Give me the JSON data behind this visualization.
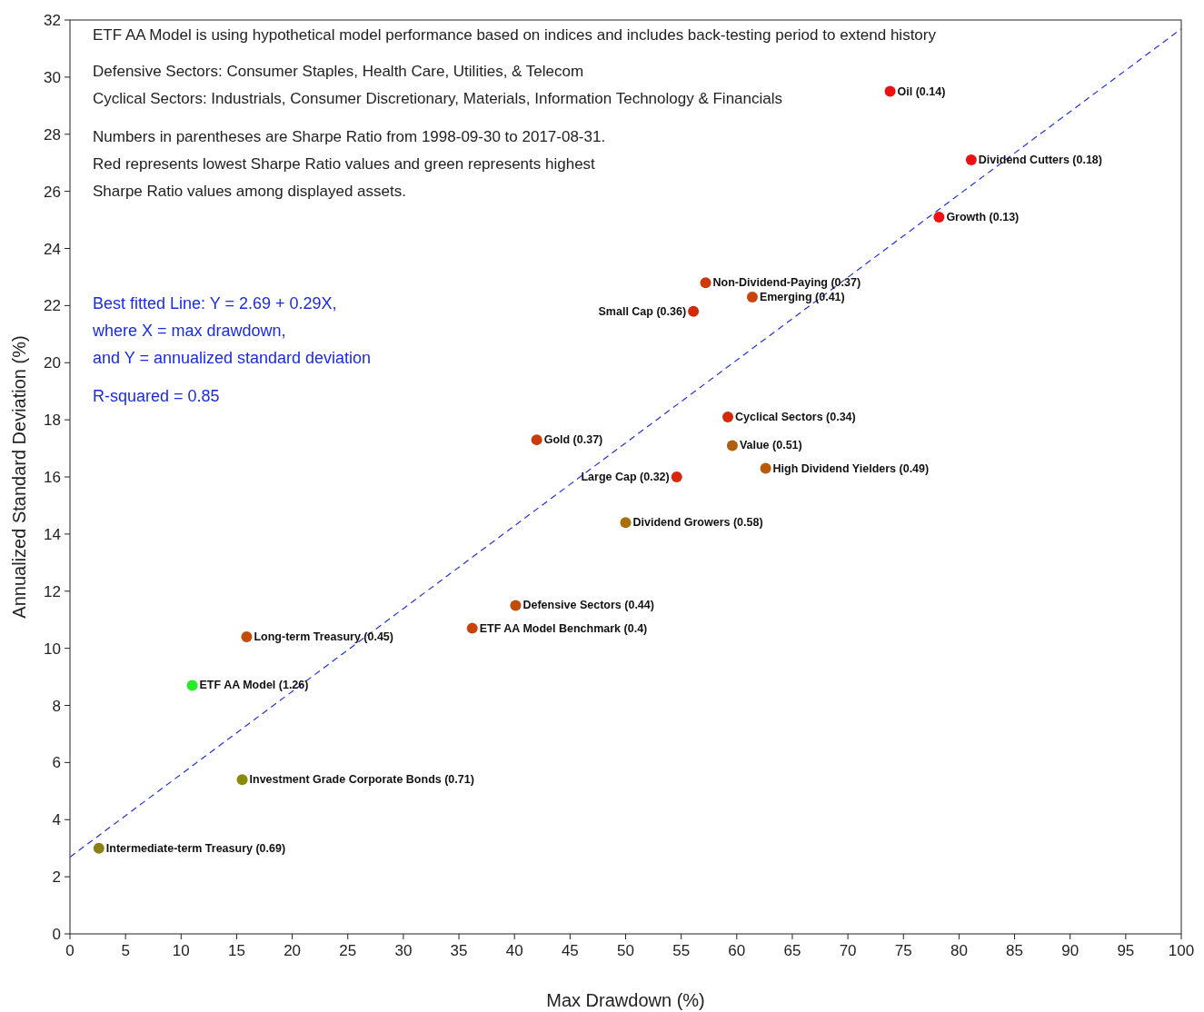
{
  "chart_data": {
    "type": "scatter",
    "xlabel": "Max Drawdown (%)",
    "ylabel": "Annualized Standard Deviation (%)",
    "xlim": [
      0,
      100
    ],
    "xticks": [
      0,
      5,
      10,
      15,
      20,
      25,
      30,
      35,
      40,
      45,
      50,
      55,
      60,
      65,
      70,
      75,
      80,
      85,
      90,
      95,
      100
    ],
    "ylim": [
      0,
      32
    ],
    "yticks": [
      0,
      2,
      4,
      6,
      8,
      10,
      12,
      14,
      16,
      18,
      20,
      22,
      24,
      26,
      28,
      30,
      32
    ],
    "marker": "circle",
    "grid": false,
    "annotations": [
      "ETF AA Model is using hypothetical model performance based on indices and includes back-testing period to extend history",
      "Defensive Sectors: Consumer Staples, Health Care, Utilities, & Telecom",
      "Cyclical Sectors: Industrials, Consumer Discretionary, Materials, Information Technology & Financials",
      "Numbers in parentheses are Sharpe Ratio from 1998-09-30 to 2017-08-31.",
      "Red represents lowest Sharpe Ratio values and green represents highest",
      "Sharpe Ratio values among displayed assets.",
      "Best fitted Line: Y = 2.69 + 0.29X,",
      "where X = max drawdown,",
      "and Y = annualized standard deviation",
      "R-squared = 0.85"
    ],
    "series": [
      {
        "name": "Oil (0.14)",
        "color": "#ee1111",
        "x": [
          73.8
        ],
        "values": [
          29.5
        ]
      },
      {
        "name": "Dividend Cutters (0.18)",
        "color": "#ee1111",
        "x": [
          81.1
        ],
        "values": [
          27.1
        ]
      },
      {
        "name": "Growth (0.13)",
        "color": "#ee1111",
        "x": [
          78.2
        ],
        "values": [
          25.1
        ]
      },
      {
        "name": "Non-Dividend-Paying (0.37)",
        "color": "#cc3a0a",
        "x": [
          57.2
        ],
        "values": [
          22.8
        ]
      },
      {
        "name": "Small Cap (0.36)",
        "color": "#d42a0a",
        "x": [
          56.1
        ],
        "values": [
          21.8
        ]
      },
      {
        "name": "Emerging (0.41)",
        "color": "#c8440a",
        "x": [
          61.4
        ],
        "values": [
          22.3
        ]
      },
      {
        "name": "Cyclical Sectors (0.34)",
        "color": "#d42a0a",
        "x": [
          59.2
        ],
        "values": [
          18.1
        ]
      },
      {
        "name": "Value (0.51)",
        "color": "#b0600a",
        "x": [
          59.6
        ],
        "values": [
          17.1
        ]
      },
      {
        "name": "Large Cap (0.32)",
        "color": "#d42a0a",
        "x": [
          54.6
        ],
        "values": [
          16.0
        ]
      },
      {
        "name": "High Dividend Yielders (0.49)",
        "color": "#b85a0a",
        "x": [
          62.6
        ],
        "values": [
          16.3
        ]
      },
      {
        "name": "Gold (0.37)",
        "color": "#cc3a0a",
        "x": [
          42.0
        ],
        "values": [
          17.3
        ]
      },
      {
        "name": "Dividend Growers (0.58)",
        "color": "#a8700a",
        "x": [
          50.0
        ],
        "values": [
          14.4
        ]
      },
      {
        "name": "Defensive Sectors (0.44)",
        "color": "#c04e0a",
        "x": [
          40.1
        ],
        "values": [
          11.5
        ]
      },
      {
        "name": "ETF AA Model Benchmark (0.4)",
        "color": "#c8440a",
        "x": [
          36.2
        ],
        "values": [
          10.7
        ]
      },
      {
        "name": "Long-term Treasury (0.45)",
        "color": "#c04e0a",
        "x": [
          15.9
        ],
        "values": [
          10.4
        ]
      },
      {
        "name": "ETF AA Model (1.26)",
        "color": "#22ee22",
        "x": [
          11.0
        ],
        "values": [
          8.7
        ]
      },
      {
        "name": "Investment Grade Corporate Bonds (0.71)",
        "color": "#8a8a0a",
        "x": [
          15.5
        ],
        "values": [
          5.4
        ]
      },
      {
        "name": "Intermediate-term Treasury (0.69)",
        "color": "#8a8014",
        "x": [
          2.6
        ],
        "values": [
          3.0
        ]
      },
      {
        "type": "line",
        "color": "#2233dd",
        "line_style": "dashed",
        "marker": "none",
        "x": [
          0,
          100
        ],
        "values": [
          2.69,
          31.69
        ]
      }
    ]
  }
}
